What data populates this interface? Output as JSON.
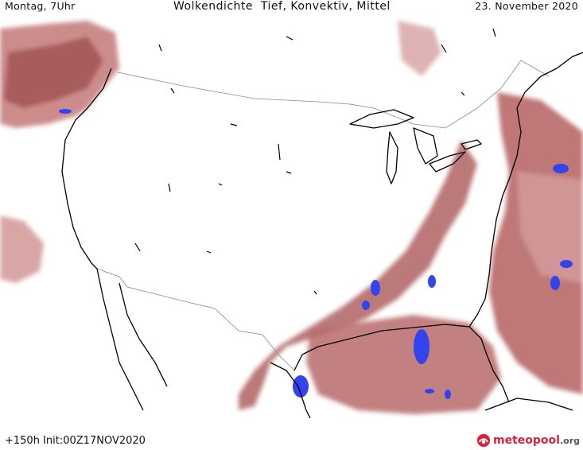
{
  "header": {
    "time_label": "Montag, 7Uhr",
    "title": "Wolkendichte  Tief, Konvektiv, Mittel",
    "date_label": "23. November 2020"
  },
  "footer": {
    "run_info": "+150h  Init:00Z17NOV2020",
    "logo_name": "meteopool",
    "logo_tld": ".org"
  },
  "colors": {
    "cloud_light": "#d8a0a0",
    "cloud_mid": "#b86868",
    "cloud_dark": "#8a3a3a",
    "convective": "#3344ee",
    "coastline": "#000000",
    "border": "#888888",
    "logo_accent": "#d6233e"
  }
}
